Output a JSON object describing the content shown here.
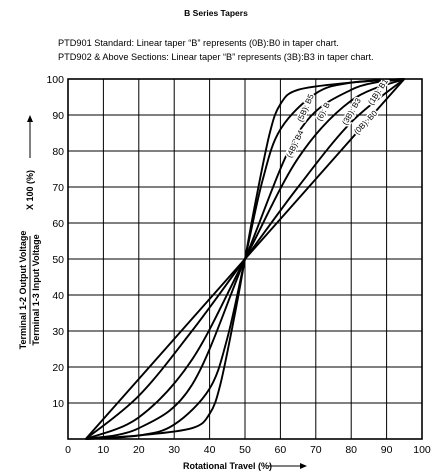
{
  "chart_data": {
    "type": "line",
    "title": "B Series Tapers",
    "notes": [
      "PTD901 Standard: Linear taper “B” represents (0B):B0 in taper chart.",
      "PTD902 & Above Sections: Linear taper “B” represents (3B):B3 in taper chart."
    ],
    "xlabel": "Rotational Travel (%)",
    "ylabel_numerator": "Terminal 1-2 Output Voltage",
    "ylabel_denominator": "Terminal 1-3 Input Voltage",
    "ylabel_suffix": "X 100 (%)",
    "xlim": [
      0,
      100
    ],
    "ylim": [
      0,
      100
    ],
    "x_ticks": [
      "0",
      "10",
      "20",
      "30",
      "40",
      "50",
      "60",
      "70",
      "80",
      "90",
      "100"
    ],
    "y_ticks": [
      "10",
      "20",
      "30",
      "40",
      "50",
      "60",
      "70",
      "80",
      "90",
      "100"
    ],
    "grid": true,
    "series": [
      {
        "name": "(0B): B0",
        "x": [
          5,
          50,
          95
        ],
        "y": [
          0,
          50,
          100
        ],
        "label_at": [
          84,
          88
        ],
        "label_angle": 46
      },
      {
        "name": "(1B): B1",
        "x": [
          5,
          20,
          35,
          50,
          65,
          80,
          95
        ],
        "y": [
          0,
          12,
          30,
          50,
          70,
          88,
          100
        ],
        "label_at": [
          87.5,
          96.5
        ],
        "label_angle": 57
      },
      {
        "name": "(3B): B3",
        "x": [
          5,
          20,
          35,
          50,
          65,
          80,
          95
        ],
        "y": [
          0,
          6,
          22,
          50,
          78,
          94,
          100
        ],
        "label_at": [
          80,
          91
        ],
        "label_angle": 60
      },
      {
        "name": "(6): B",
        "x": [
          5,
          20,
          35,
          50,
          65,
          80,
          95
        ],
        "y": [
          0,
          3,
          15,
          50,
          85,
          97,
          100
        ],
        "label_at": [
          72,
          91
        ],
        "label_angle": 62
      },
      {
        "name": "(4B): B4",
        "x": [
          5,
          20,
          30,
          40,
          45,
          50,
          55,
          60,
          70,
          80,
          95
        ],
        "y": [
          0,
          1,
          4,
          14,
          28,
          50,
          72,
          86,
          96,
          99,
          100
        ],
        "label_at": [
          64,
          82
        ],
        "label_angle": 64
      },
      {
        "name": "(5B): B5",
        "x": [
          5,
          20,
          35,
          40,
          43,
          47,
          50,
          53,
          57,
          60,
          65,
          80,
          95
        ],
        "y": [
          0,
          1,
          3,
          7,
          15,
          34,
          50,
          66,
          85,
          93,
          97,
          99,
          100
        ],
        "label_at": [
          67,
          92
        ],
        "label_angle": 66
      }
    ]
  }
}
